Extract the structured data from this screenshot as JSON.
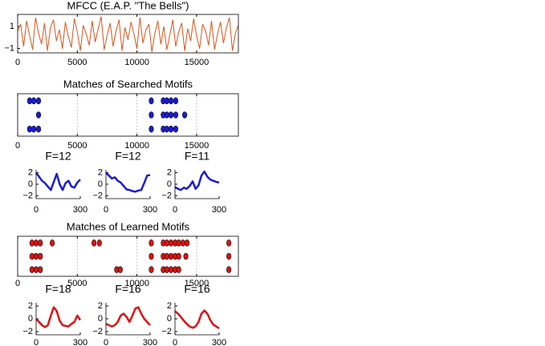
{
  "chart_data": [
    {
      "type": "line",
      "title": "MFCC (E.A.P. \"The Bells\")",
      "color": "#d95319",
      "box": true,
      "grid": false,
      "xlim": [
        0,
        18500
      ],
      "xticks": [
        0,
        5000,
        10000,
        15000
      ],
      "ylim": [
        -1.4,
        2.1
      ],
      "yticks": [
        1,
        {
          "value": -1,
          "label": "−1"
        }
      ],
      "x": [
        0,
        250,
        500,
        750,
        1000,
        1250,
        1500,
        1750,
        2000,
        2250,
        2500,
        2750,
        3000,
        3250,
        3500,
        3750,
        4000,
        4250,
        4500,
        4750,
        5000,
        5250,
        5500,
        5750,
        6000,
        6250,
        6500,
        6750,
        7000,
        7250,
        7500,
        7750,
        8000,
        8250,
        8500,
        8750,
        9000,
        9250,
        9500,
        9750,
        10000,
        10250,
        10500,
        10750,
        11000,
        11250,
        11500,
        11750,
        12000,
        12250,
        12500,
        12750,
        13000,
        13250,
        13500,
        13750,
        14000,
        14250,
        14500,
        14750,
        15000,
        15250,
        15500,
        15750,
        16000,
        16250,
        16500,
        16750,
        17000,
        17250,
        17500,
        17750,
        18000,
        18250,
        18500
      ],
      "values": [
        0.6,
        1.2,
        -0.8,
        1.5,
        0.2,
        -1.1,
        1.8,
        0.4,
        -0.6,
        1.3,
        -1.2,
        0.9,
        1.6,
        -0.3,
        0.7,
        -1.0,
        1.4,
        0.1,
        -0.9,
        1.7,
        0.5,
        -1.2,
        1.1,
        0.3,
        -0.7,
        1.5,
        -0.4,
        0.8,
        1.9,
        -1.1,
        0.2,
        1.3,
        -0.8,
        0.6,
        1.6,
        -1.2,
        0.9,
        -0.2,
        1.4,
        0.3,
        -1.0,
        1.8,
        -0.5,
        0.7,
        1.2,
        -1.3,
        0.4,
        1.5,
        -0.6,
        1.0,
        -1.1,
        0.2,
        1.6,
        -0.8,
        0.5,
        1.3,
        -1.2,
        0.8,
        -0.3,
        1.7,
        0.1,
        -1.0,
        1.2,
        0.6,
        -0.7,
        1.5,
        -1.1,
        0.3,
        1.4,
        -0.5,
        0.9,
        1.8,
        -1.2,
        0.4,
        1.1
      ]
    },
    {
      "type": "scatter",
      "title": "Matches of Searched Motifs",
      "color": "#1a1ad6",
      "box": true,
      "grid": true,
      "xlim": [
        0,
        18500
      ],
      "xticks": [
        0,
        5000,
        10000,
        15000
      ],
      "ylim": [
        0.5,
        3.5
      ],
      "x": [
        1000,
        1350,
        1750,
        11200,
        12200,
        12500,
        12850,
        13250,
        1750,
        11200,
        12200,
        12500,
        12850,
        13250,
        14000,
        1000,
        1350,
        1750,
        11200,
        12200,
        12500,
        12850,
        13250
      ],
      "y": [
        3,
        3,
        3,
        3,
        3,
        3,
        3,
        3,
        2,
        2,
        2,
        2,
        2,
        2,
        2,
        1,
        1,
        1,
        1,
        1,
        1,
        1,
        1
      ]
    },
    {
      "type": "line",
      "title": "F=12",
      "color": "#1a1ad6",
      "box": false,
      "grid": false,
      "xlim": [
        0,
        300
      ],
      "xticks": [
        0,
        300
      ],
      "ylim": [
        -2.5,
        2.5
      ],
      "yticks": [
        2,
        0,
        {
          "value": -2,
          "label": "−2"
        }
      ],
      "x": [
        0,
        20,
        40,
        60,
        80,
        100,
        120,
        140,
        160,
        180,
        200,
        220,
        240,
        260,
        280,
        300
      ],
      "values": [
        2,
        1.3,
        0.6,
        0.2,
        -0.4,
        -1,
        0.4,
        1.8,
        0,
        -1,
        0.2,
        0.6,
        -0.4,
        -0.6,
        0.3,
        0.8
      ]
    },
    {
      "type": "line",
      "title": "F=12",
      "color": "#1a1ad6",
      "box": false,
      "grid": false,
      "xlim": [
        0,
        300
      ],
      "xticks": [
        0,
        300
      ],
      "ylim": [
        -2.5,
        2.5
      ],
      "yticks": [
        2,
        0,
        {
          "value": -2,
          "label": "−2"
        }
      ],
      "x": [
        0,
        20,
        40,
        60,
        80,
        100,
        120,
        140,
        160,
        180,
        200,
        220,
        240,
        260,
        280,
        300
      ],
      "values": [
        2,
        1.5,
        1,
        1.2,
        0.6,
        0.3,
        -0.3,
        -0.9,
        -1,
        -1.2,
        -1.3,
        -1.1,
        -1,
        0.2,
        1.5,
        1.6
      ]
    },
    {
      "type": "line",
      "title": "F=11",
      "color": "#1a1ad6",
      "box": false,
      "grid": false,
      "xlim": [
        0,
        300
      ],
      "xticks": [
        0,
        300
      ],
      "ylim": [
        -2.5,
        2.5
      ],
      "yticks": [
        2,
        0,
        {
          "value": -2,
          "label": "−2"
        }
      ],
      "x": [
        0,
        20,
        40,
        60,
        80,
        100,
        120,
        140,
        160,
        180,
        200,
        220,
        240,
        260,
        280,
        300
      ],
      "values": [
        -0.5,
        -0.8,
        -1,
        -0.6,
        -0.8,
        -0.3,
        0.5,
        -0.8,
        -0.2,
        1.5,
        2.2,
        1.3,
        0.8,
        0.6,
        0.4,
        0.3
      ]
    },
    {
      "type": "scatter",
      "title": "Matches of Learned Motifs",
      "color": "#e01010",
      "box": true,
      "grid": true,
      "xlim": [
        0,
        18500
      ],
      "xticks": [
        0,
        5000,
        10000,
        15000
      ],
      "ylim": [
        0.5,
        3.5
      ],
      "x": [
        1200,
        1550,
        1900,
        2900,
        6400,
        6850,
        11200,
        12200,
        12500,
        12850,
        13200,
        13500,
        13850,
        14200,
        17700,
        1200,
        1550,
        1900,
        11200,
        12200,
        12500,
        12850,
        13200,
        13500,
        14100,
        17700,
        1200,
        1550,
        1900,
        8300,
        8600,
        11200,
        12200,
        12500,
        12850,
        13200,
        13500,
        17700
      ],
      "y": [
        3,
        3,
        3,
        3,
        3,
        3,
        3,
        3,
        3,
        3,
        3,
        3,
        3,
        3,
        3,
        2,
        2,
        2,
        2,
        2,
        2,
        2,
        2,
        2,
        2,
        2,
        1,
        1,
        1,
        1,
        1,
        1,
        1,
        1,
        1,
        1,
        1,
        1
      ]
    },
    {
      "type": "line",
      "title": "F=18",
      "color": "#e01010",
      "box": false,
      "grid": false,
      "xlim": [
        0,
        300
      ],
      "xticks": [
        0,
        300
      ],
      "ylim": [
        -2.5,
        2.5
      ],
      "yticks": [
        2,
        0,
        {
          "value": -2,
          "label": "−2"
        }
      ],
      "x": [
        0,
        20,
        40,
        60,
        80,
        100,
        120,
        140,
        160,
        180,
        200,
        220,
        240,
        260,
        280,
        300
      ],
      "values": [
        0,
        -0.5,
        -1,
        -1.3,
        -1,
        0.5,
        1.8,
        1.2,
        -0.3,
        -1,
        -1.1,
        -1.2,
        -0.8,
        -0.5,
        0.5,
        -0.2
      ]
    },
    {
      "type": "line",
      "title": "F=16",
      "color": "#e01010",
      "box": false,
      "grid": false,
      "xlim": [
        0,
        300
      ],
      "xticks": [
        0,
        300
      ],
      "ylim": [
        -2.5,
        2.5
      ],
      "yticks": [
        2,
        0,
        {
          "value": -2,
          "label": "−2"
        }
      ],
      "x": [
        0,
        20,
        40,
        60,
        80,
        100,
        120,
        140,
        160,
        180,
        200,
        220,
        240,
        260,
        280,
        300
      ],
      "values": [
        -0.8,
        -1,
        -1.2,
        -1,
        -0.5,
        0.5,
        0.8,
        0.3,
        -0.5,
        0.5,
        1.6,
        1.8,
        0.8,
        0,
        -0.5,
        -1
      ]
    },
    {
      "type": "line",
      "title": "F=16",
      "color": "#e01010",
      "box": false,
      "grid": false,
      "xlim": [
        0,
        300
      ],
      "xticks": [
        0,
        300
      ],
      "ylim": [
        -2.5,
        2.5
      ],
      "yticks": [
        2,
        0,
        {
          "value": -2,
          "label": "−2"
        }
      ],
      "x": [
        0,
        20,
        40,
        60,
        80,
        100,
        120,
        140,
        160,
        180,
        200,
        220,
        240,
        260,
        280,
        300
      ],
      "values": [
        1.2,
        0.8,
        0.3,
        -0.3,
        -0.8,
        -1.2,
        -1.4,
        -1.2,
        -0.5,
        0.8,
        1.3,
        0.8,
        -0.2,
        -0.9,
        -1.2,
        -1.5
      ]
    }
  ]
}
